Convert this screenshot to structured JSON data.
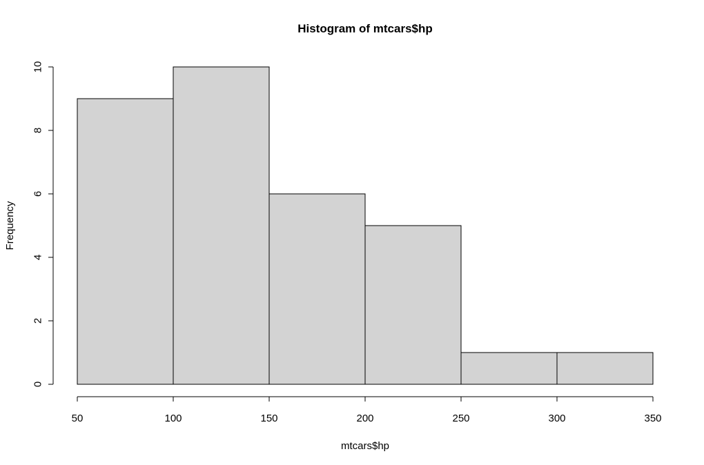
{
  "chart_data": {
    "type": "bar",
    "title": "Histogram of mtcars$hp",
    "xlabel": "mtcars$hp",
    "ylabel": "Frequency",
    "bin_edges": [
      50,
      100,
      150,
      200,
      250,
      300,
      350
    ],
    "values": [
      9,
      10,
      6,
      5,
      1,
      1
    ],
    "xlim": [
      50,
      350
    ],
    "ylim": [
      0,
      10
    ],
    "x_ticks": [
      50,
      100,
      150,
      200,
      250,
      300,
      350
    ],
    "y_ticks": [
      0,
      2,
      4,
      6,
      8,
      10
    ],
    "grid": false,
    "bar_fill": "#d3d3d3",
    "bar_stroke": "#000000"
  }
}
